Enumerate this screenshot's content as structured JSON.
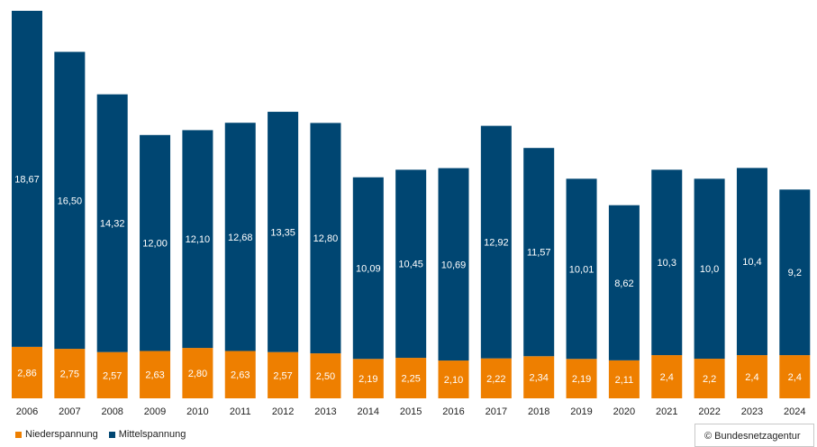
{
  "chart_data": {
    "type": "bar",
    "stacked": true,
    "title": "",
    "xlabel": "",
    "ylabel": "",
    "ylim": [
      0,
      21.53
    ],
    "grid": false,
    "legend_position": "bottom-left",
    "categories": [
      "2006",
      "2007",
      "2008",
      "2009",
      "2010",
      "2011",
      "2012",
      "2013",
      "2014",
      "2015",
      "2016",
      "2017",
      "2018",
      "2019",
      "2020",
      "2021",
      "2022",
      "2023",
      "2024"
    ],
    "series": [
      {
        "name": "Niederspannung",
        "color": "#EE7F00",
        "values": [
          2.86,
          2.75,
          2.57,
          2.63,
          2.8,
          2.63,
          2.57,
          2.5,
          2.19,
          2.25,
          2.1,
          2.22,
          2.34,
          2.19,
          2.11,
          2.4,
          2.2,
          2.4,
          2.4
        ],
        "labels": [
          "2,86",
          "2,75",
          "2,57",
          "2,63",
          "2,80",
          "2,63",
          "2,57",
          "2,50",
          "2,19",
          "2,25",
          "2,10",
          "2,22",
          "2,34",
          "2,19",
          "2,11",
          "2,4",
          "2,2",
          "2,4",
          "2,4"
        ]
      },
      {
        "name": "Mittelspannung",
        "color": "#004672",
        "values": [
          18.67,
          16.5,
          14.32,
          12.0,
          12.1,
          12.68,
          13.35,
          12.8,
          10.09,
          10.45,
          10.69,
          12.92,
          11.57,
          10.01,
          8.62,
          10.3,
          10.0,
          10.4,
          9.2
        ],
        "labels": [
          "18,67",
          "16,50",
          "14,32",
          "12,00",
          "12,10",
          "12,68",
          "13,35",
          "12,80",
          "10,09",
          "10,45",
          "10,69",
          "12,92",
          "11,57",
          "10,01",
          "8,62",
          "10,3",
          "10,0",
          "10,4",
          "9,2"
        ]
      }
    ]
  },
  "credit": "© Bundesnetzagentur"
}
